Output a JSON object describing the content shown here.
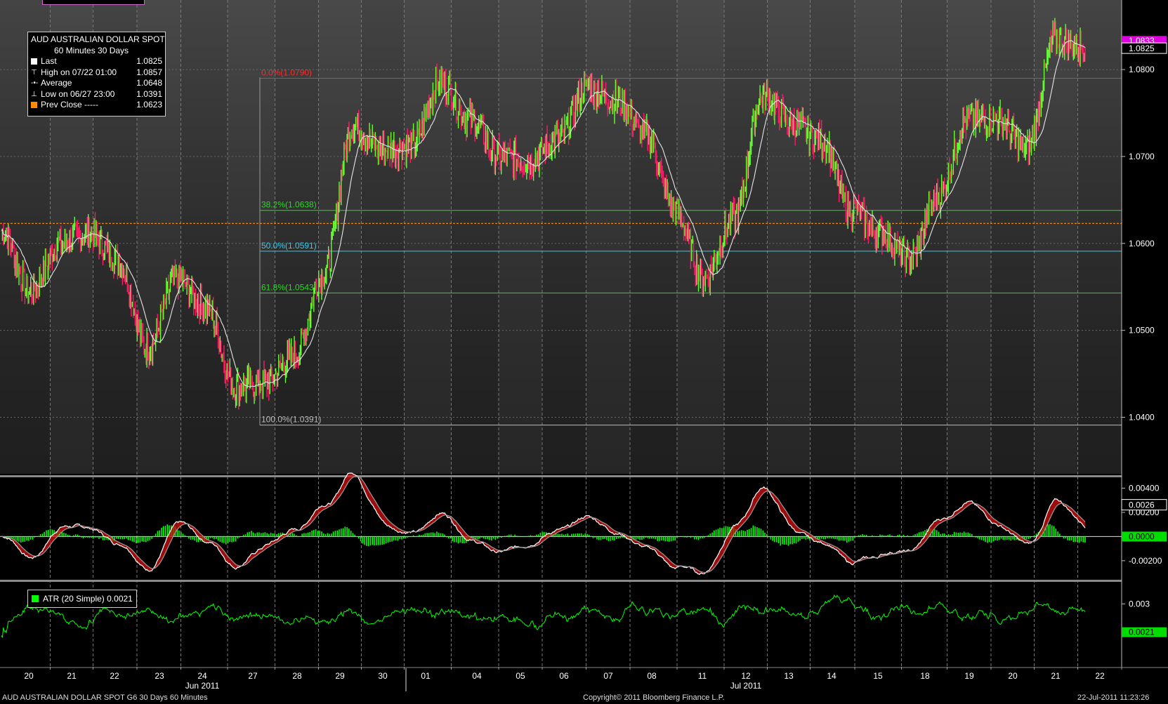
{
  "window": {
    "title": "AUD AUSTRALIAN DOLLAR SPOT"
  },
  "legend": {
    "title": "AUD  AUSTRALIAN DOLLAR SPOT",
    "subtitle": "60 Minutes  30 Days",
    "rows": [
      {
        "label": "Last",
        "value": "1.0825",
        "glyph": "square",
        "color": "#ffffff"
      },
      {
        "label": "High on 07/22 01:00",
        "value": "1.0857",
        "glyph": "high-marker",
        "color": "#ffffff"
      },
      {
        "label": "Average",
        "value": "1.0648",
        "glyph": "avg-marker",
        "color": "#ffffff"
      },
      {
        "label": "Low on 06/27 23:00",
        "value": "1.0391",
        "glyph": "low-marker",
        "color": "#ffffff"
      },
      {
        "label": "Prev Close -----",
        "value": "1.0623",
        "glyph": "square",
        "color": "#ff8c00"
      }
    ]
  },
  "atr_legend": {
    "label": "ATR (20 Simple) 0.0021"
  },
  "footer": {
    "left": "AUD  AUSTRALIAN DOLLAR SPOT        G6     30 Days   60 Minutes",
    "center": "Copyright© 2011 Bloomberg Finance L.P.",
    "right": "22-Jul-2011 11:23:26"
  },
  "colors": {
    "up": "#66ff33",
    "down": "#ff1a66",
    "average": "#e6e6e6",
    "fib_0": "#ff2a2a",
    "fib_382": "#22dd22",
    "fib_50": "#33ccee",
    "fib_618": "#22dd22",
    "fib_100": "#bbbbbb",
    "prev_close": "#ff8c00",
    "atr": "#00ff00",
    "histogram": "#00ff00",
    "macd_fill": "#d01010"
  },
  "chart_data": [
    {
      "type": "candlestick",
      "title": "AUD AUSTRALIAN DOLLAR SPOT",
      "interval": "60 Minutes",
      "x_labels": [
        "20",
        "21",
        "22",
        "23",
        "24",
        "27",
        "28",
        "29",
        "30",
        "01",
        "04",
        "05",
        "06",
        "07",
        "08",
        "11",
        "12",
        "13",
        "14",
        "15",
        "18",
        "19",
        "20",
        "21",
        "22"
      ],
      "x_group_labels": [
        "Jun 2011",
        "Jul 2011"
      ],
      "y_ticks": [
        "1.0400",
        "1.0500",
        "1.0600",
        "1.0700",
        "1.0800"
      ],
      "ylim": [
        1.0335,
        1.088
      ],
      "last": 1.0825,
      "last_tag_above": "1.0833",
      "high": 1.0857,
      "low": 1.0391,
      "average": 1.0648,
      "prev_close": 1.0623,
      "daily_anchor_closes": [
        1.0615,
        1.0545,
        1.06,
        1.0612,
        1.058,
        1.048,
        1.056,
        1.0525,
        1.0435,
        1.044,
        1.047,
        1.0565,
        1.0735,
        1.0708,
        1.0712,
        1.0785,
        1.0742,
        1.07,
        1.0695,
        1.072,
        1.0778,
        1.0765,
        1.0725,
        1.0638,
        1.056,
        1.0628,
        1.077,
        1.0738,
        1.0718,
        1.064,
        1.0612,
        1.0582,
        1.0655,
        1.0742,
        1.0742,
        1.0708,
        1.0835,
        1.0825
      ],
      "fibonacci": [
        {
          "label": "0.0%(1.0790)",
          "value": 1.079
        },
        {
          "label": "38.2%(1.0638)",
          "value": 1.0638
        },
        {
          "label": "50.0%(1.0591)",
          "value": 1.0591
        },
        {
          "label": "61.8%(1.0543)",
          "value": 1.0543
        },
        {
          "label": "100.0%(1.0391)",
          "value": 1.0391
        }
      ]
    },
    {
      "type": "line",
      "title": "MACD",
      "y_ticks": [
        "0.00400",
        "0.00200",
        "0.0000",
        "-0.00200"
      ],
      "ylim": [
        -0.0034,
        0.0049
      ],
      "last_macd_tag": "0.0026",
      "zero_tag": "0.0000"
    },
    {
      "type": "line",
      "title": "ATR (20 Simple)",
      "y_ticks": [
        "0.003"
      ],
      "ylim": [
        0.001,
        0.0037
      ],
      "last": "0.0021"
    }
  ]
}
